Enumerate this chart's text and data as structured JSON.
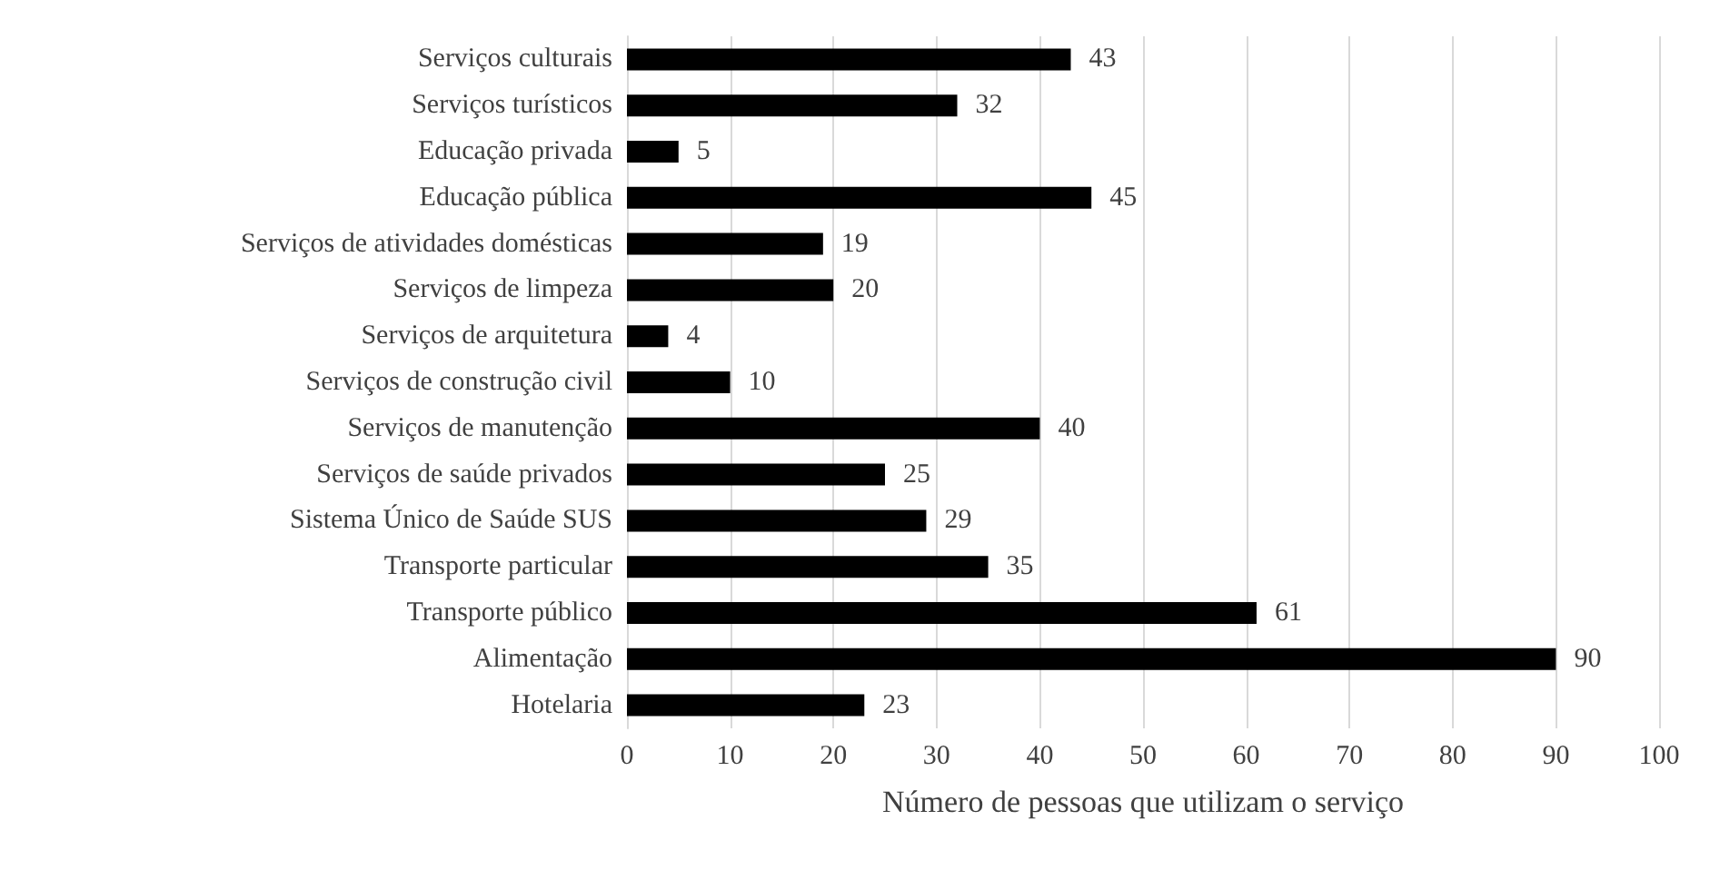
{
  "chart_data": {
    "type": "bar",
    "orientation": "horizontal",
    "xlabel": "Número de pessoas que utilizam o serviço",
    "categories": [
      "Serviços culturais",
      "Serviços turísticos",
      "Educação privada",
      "Educação pública",
      "Serviços de atividades domésticas",
      "Serviços de limpeza",
      "Serviços de arquitetura",
      "Serviços de construção civil",
      "Serviços de manutenção",
      "Serviços de saúde privados",
      "Sistema Único de Saúde SUS",
      "Transporte particular",
      "Transporte público",
      "Alimentação",
      "Hotelaria"
    ],
    "values": [
      43,
      32,
      5,
      45,
      19,
      20,
      4,
      10,
      40,
      25,
      29,
      35,
      61,
      90,
      23
    ],
    "color": "#000000",
    "xlim": [
      0,
      100
    ],
    "xticks": [
      0,
      10,
      20,
      30,
      40,
      50,
      60,
      70,
      80,
      90,
      100
    ],
    "grid": "x",
    "data_labels": true
  }
}
